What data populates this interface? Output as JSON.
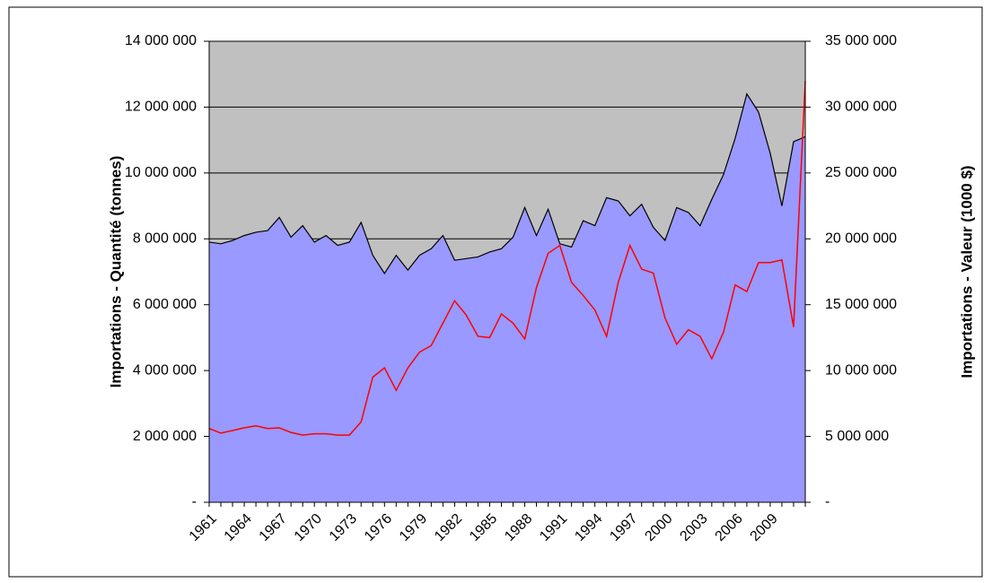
{
  "chart_data": {
    "type": "area",
    "y_label": "Importations - Quantité (tonnes)",
    "y2_label": "Importations - Valeur (1000 $)",
    "categories": [
      "1961",
      null,
      null,
      "1964",
      null,
      null,
      "1967",
      null,
      null,
      "1970",
      null,
      null,
      "1973",
      null,
      null,
      "1976",
      null,
      null,
      "1979",
      null,
      null,
      "1982",
      null,
      null,
      "1985",
      null,
      null,
      "1988",
      null,
      null,
      "1991",
      null,
      null,
      "1994",
      null,
      null,
      "1997",
      null,
      null,
      "2000",
      null,
      null,
      "2003",
      null,
      null,
      "2006",
      null,
      null,
      "2009",
      null,
      null,
      null
    ],
    "series": [
      {
        "type": "area",
        "color": "#9999ff",
        "values": [
          7900000,
          7850000,
          7950000,
          8100000,
          8200000,
          8250000,
          8650000,
          8050000,
          8400000,
          7900000,
          8100000,
          7800000,
          7900000,
          8500000,
          7500000,
          6950000,
          7500000,
          7050000,
          7500000,
          7700000,
          8100000,
          7350000,
          7400000,
          7450000,
          7600000,
          7700000,
          8050000,
          8950000,
          8100000,
          8900000,
          7850000,
          7750000,
          8550000,
          8400000,
          9250000,
          9150000,
          8700000,
          9050000,
          8350000,
          7950000,
          8950000,
          8800000,
          8400000,
          9200000,
          9950000,
          11050000,
          12400000,
          11850000,
          10600000,
          9000000,
          10950000,
          11100000
        ]
      },
      {
        "type": "line",
        "color": "#ff0000",
        "axis": "y2",
        "values": [
          5600000,
          5250000,
          5450000,
          5650000,
          5800000,
          5600000,
          5650000,
          5300000,
          5100000,
          5200000,
          5200000,
          5100000,
          5100000,
          6100000,
          9500000,
          10200000,
          8500000,
          10200000,
          11400000,
          11900000,
          13600000,
          15300000,
          14200000,
          12600000,
          12500000,
          14300000,
          13600000,
          12400000,
          16300000,
          18900000,
          19500000,
          16700000,
          15700000,
          14600000,
          12600000,
          16700000,
          19500000,
          17700000,
          17400000,
          14000000,
          12000000,
          13100000,
          12600000,
          10900000,
          12900000,
          16500000,
          16000000,
          18200000,
          18200000,
          18400000,
          13300000,
          32000000
        ]
      }
    ],
    "ylim": [
      0,
      14000000
    ],
    "yticks": [
      {
        "value": 0,
        "label": "-"
      },
      {
        "value": 2000000,
        "label": "2 000 000"
      },
      {
        "value": 4000000,
        "label": "4 000 000"
      },
      {
        "value": 6000000,
        "label": "6 000 000"
      },
      {
        "value": 8000000,
        "label": "8 000 000"
      },
      {
        "value": 10000000,
        "label": "10 000 000"
      },
      {
        "value": 12000000,
        "label": "12 000 000"
      },
      {
        "value": 14000000,
        "label": "14 000 000"
      }
    ],
    "y2lim": [
      0,
      35000000
    ],
    "y2ticks": [
      {
        "value": 0,
        "label": "-"
      },
      {
        "value": 5000000,
        "label": "5 000 000"
      },
      {
        "value": 10000000,
        "label": "10 000 000"
      },
      {
        "value": 15000000,
        "label": "15 000 000"
      },
      {
        "value": 20000000,
        "label": "20 000 000"
      },
      {
        "value": 25000000,
        "label": "25 000 000"
      },
      {
        "value": 30000000,
        "label": "30 000 000"
      },
      {
        "value": 35000000,
        "label": "35 000 000"
      }
    ],
    "grid": true,
    "background": "#c0c0c0"
  }
}
